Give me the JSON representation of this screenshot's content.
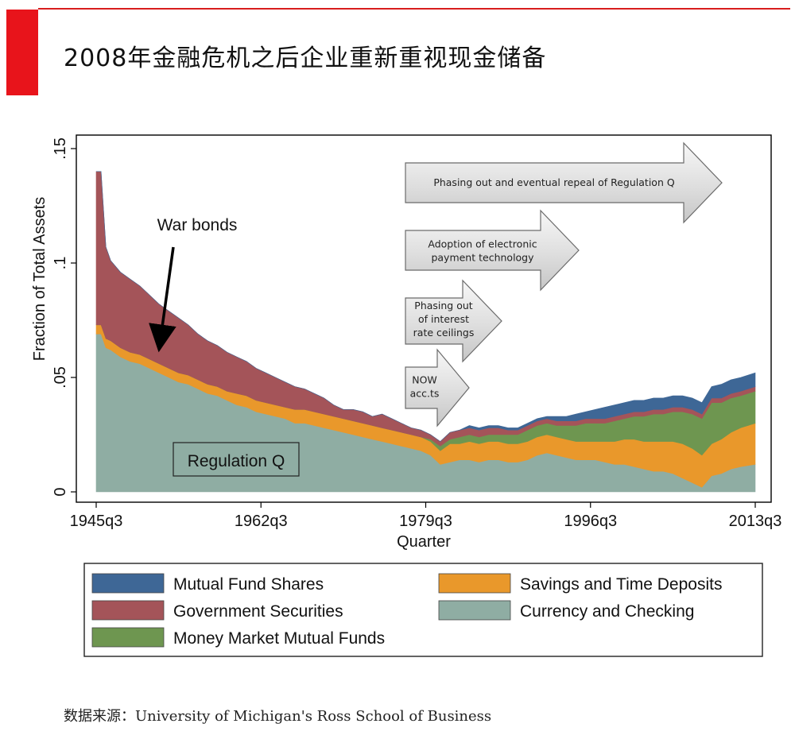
{
  "title": "2008年金融危机之后企业重新重视现金储备",
  "source_label": "数据来源：",
  "source_text": "University of Michigan's Ross School of Business",
  "chart_data": {
    "type": "area",
    "stacked": true,
    "x_range": [
      1945.5,
      2013.5
    ],
    "ylim": [
      0,
      0.15
    ],
    "ylabel": "Fraction of Total Assets",
    "xlabel": "Quarter",
    "x_ticks": [
      {
        "v": 1945.5,
        "label": "1945q3"
      },
      {
        "v": 1962.5,
        "label": "1962q3"
      },
      {
        "v": 1979.5,
        "label": "1979q3"
      },
      {
        "v": 1996.5,
        "label": "1996q3"
      },
      {
        "v": 2013.5,
        "label": "2013q3"
      }
    ],
    "y_ticks": [
      {
        "v": 0,
        "label": "0"
      },
      {
        "v": 0.05,
        "label": ".05"
      },
      {
        "v": 0.1,
        "label": ".1"
      },
      {
        "v": 0.15,
        "label": ".15"
      }
    ],
    "x": [
      1945.5,
      1946,
      1946.5,
      1947,
      1948,
      1949,
      1950,
      1951,
      1952,
      1953,
      1954,
      1955,
      1956,
      1957,
      1958,
      1959,
      1960,
      1961,
      1962,
      1963,
      1964,
      1965,
      1966,
      1967,
      1968,
      1969,
      1970,
      1971,
      1972,
      1973,
      1974,
      1975,
      1976,
      1977,
      1978,
      1979,
      1980,
      1981,
      1982,
      1983,
      1984,
      1985,
      1986,
      1987,
      1988,
      1989,
      1990,
      1991,
      1992,
      1993,
      1994,
      1995,
      1996,
      1997,
      1998,
      1999,
      2000,
      2001,
      2002,
      2003,
      2004,
      2005,
      2006,
      2007,
      2008,
      2009,
      2010,
      2011,
      2012,
      2013.5
    ],
    "series": [
      {
        "name": "Currency and Checking",
        "color": "#8fada3",
        "values": [
          0.069,
          0.069,
          0.063,
          0.062,
          0.059,
          0.057,
          0.056,
          0.054,
          0.052,
          0.05,
          0.048,
          0.047,
          0.045,
          0.043,
          0.042,
          0.04,
          0.038,
          0.037,
          0.035,
          0.034,
          0.033,
          0.032,
          0.03,
          0.03,
          0.029,
          0.028,
          0.027,
          0.026,
          0.025,
          0.024,
          0.023,
          0.022,
          0.021,
          0.02,
          0.019,
          0.018,
          0.016,
          0.012,
          0.013,
          0.014,
          0.014,
          0.013,
          0.014,
          0.014,
          0.013,
          0.013,
          0.014,
          0.016,
          0.017,
          0.016,
          0.015,
          0.014,
          0.014,
          0.014,
          0.013,
          0.012,
          0.012,
          0.011,
          0.01,
          0.009,
          0.009,
          0.008,
          0.006,
          0.004,
          0.002,
          0.007,
          0.008,
          0.01,
          0.011,
          0.012
        ]
      },
      {
        "name": "Savings and Time Deposits",
        "color": "#e9982b",
        "values": [
          0.004,
          0.004,
          0.004,
          0.004,
          0.004,
          0.004,
          0.004,
          0.004,
          0.004,
          0.004,
          0.004,
          0.004,
          0.004,
          0.004,
          0.004,
          0.004,
          0.005,
          0.005,
          0.005,
          0.005,
          0.005,
          0.005,
          0.006,
          0.006,
          0.006,
          0.006,
          0.006,
          0.006,
          0.006,
          0.006,
          0.006,
          0.006,
          0.006,
          0.006,
          0.006,
          0.006,
          0.006,
          0.006,
          0.008,
          0.007,
          0.008,
          0.008,
          0.008,
          0.008,
          0.008,
          0.008,
          0.008,
          0.008,
          0.008,
          0.008,
          0.008,
          0.008,
          0.008,
          0.008,
          0.009,
          0.01,
          0.011,
          0.012,
          0.012,
          0.013,
          0.013,
          0.014,
          0.015,
          0.015,
          0.014,
          0.014,
          0.015,
          0.016,
          0.017,
          0.018
        ]
      },
      {
        "name": "Money Market Mutual Funds",
        "color": "#6e9650",
        "values": [
          0,
          0,
          0,
          0,
          0,
          0,
          0,
          0,
          0,
          0,
          0,
          0,
          0,
          0,
          0,
          0,
          0,
          0,
          0,
          0,
          0,
          0,
          0,
          0,
          0,
          0,
          0,
          0,
          0,
          0,
          0,
          0,
          0,
          0,
          0,
          0,
          0.001,
          0.002,
          0.002,
          0.003,
          0.003,
          0.003,
          0.003,
          0.003,
          0.004,
          0.004,
          0.005,
          0.005,
          0.005,
          0.005,
          0.006,
          0.007,
          0.008,
          0.008,
          0.008,
          0.009,
          0.009,
          0.01,
          0.011,
          0.012,
          0.012,
          0.013,
          0.014,
          0.015,
          0.016,
          0.018,
          0.016,
          0.015,
          0.014,
          0.014
        ]
      },
      {
        "name": "Government Securities",
        "color": "#a45459",
        "values": [
          0.067,
          0.067,
          0.04,
          0.035,
          0.033,
          0.032,
          0.03,
          0.028,
          0.026,
          0.025,
          0.024,
          0.022,
          0.02,
          0.019,
          0.018,
          0.017,
          0.016,
          0.015,
          0.014,
          0.013,
          0.012,
          0.011,
          0.01,
          0.009,
          0.008,
          0.007,
          0.005,
          0.004,
          0.005,
          0.005,
          0.004,
          0.006,
          0.005,
          0.004,
          0.003,
          0.003,
          0.002,
          0.002,
          0.003,
          0.003,
          0.003,
          0.003,
          0.003,
          0.003,
          0.002,
          0.002,
          0.002,
          0.002,
          0.002,
          0.002,
          0.002,
          0.002,
          0.002,
          0.002,
          0.002,
          0.002,
          0.002,
          0.002,
          0.002,
          0.002,
          0.002,
          0.002,
          0.002,
          0.002,
          0.002,
          0.002,
          0.002,
          0.002,
          0.002,
          0.002
        ]
      },
      {
        "name": "Mutual Fund Shares",
        "color": "#3e6796",
        "values": [
          0,
          0,
          0,
          0,
          0,
          0,
          0,
          0,
          0,
          0,
          0,
          0,
          0,
          0,
          0,
          0,
          0,
          0,
          0,
          0,
          0,
          0,
          0,
          0,
          0,
          0,
          0,
          0,
          0,
          0,
          0,
          0,
          0,
          0,
          0,
          0,
          0,
          0,
          0,
          0,
          0.001,
          0.001,
          0.001,
          0.001,
          0.001,
          0.001,
          0.001,
          0.001,
          0.001,
          0.002,
          0.002,
          0.003,
          0.003,
          0.004,
          0.005,
          0.005,
          0.005,
          0.005,
          0.005,
          0.005,
          0.005,
          0.005,
          0.005,
          0.005,
          0.005,
          0.005,
          0.006,
          0.006,
          0.006,
          0.006
        ]
      }
    ],
    "legend": {
      "placement": "bottom",
      "order": [
        "Mutual Fund Shares",
        "Savings and Time Deposits",
        "Government Securities",
        "Currency and Checking",
        "Money Market Mutual Funds"
      ]
    },
    "annotations": {
      "war_bonds": "War bonds",
      "regulation_q": "Regulation Q",
      "arrows": [
        {
          "lines": [
            "Phasing out and eventual repeal of Regulation Q"
          ]
        },
        {
          "lines": [
            "Adoption of electronic",
            "payment technology"
          ]
        },
        {
          "lines": [
            "Phasing out",
            "of interest",
            "rate ceilings"
          ]
        },
        {
          "lines": [
            "NOW",
            "acc.ts"
          ]
        }
      ]
    }
  }
}
